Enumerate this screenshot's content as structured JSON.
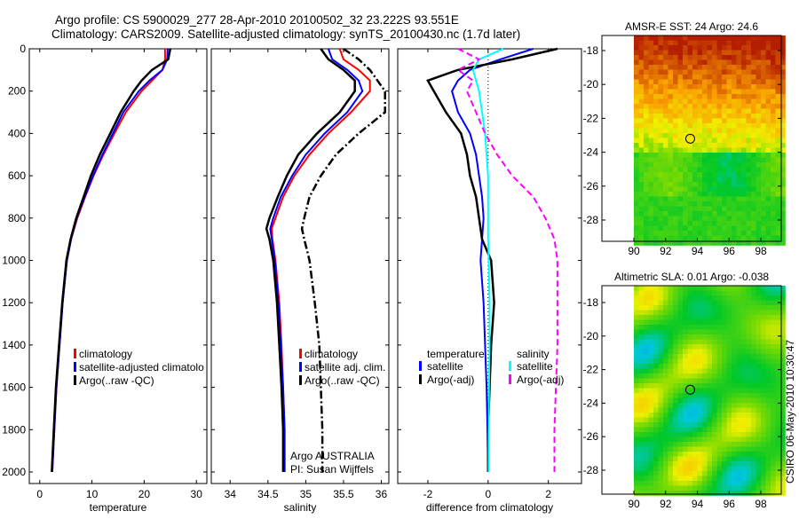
{
  "title": {
    "line1": "Argo profile: CS 5900029_277 28-Apr-2010 20100502_32 23.222S 93.551E",
    "line2": "Climatology: CARS2009. Satellite-adjusted climatology: synTS_20100430.nc (1.7d later)"
  },
  "side_stamp": "CSIRO 06-May-2010 10:30:47",
  "colors": {
    "climatology": "#ff0000",
    "satellite": "#0000ff",
    "argo": "#000000",
    "sal_satellite": "#00ffff",
    "sal_argo": "#ff00ff"
  },
  "chart_data": [
    {
      "type": "line",
      "name": "temperature-panel",
      "xlabel": "temperature",
      "ylabel": "",
      "xlim": [
        -2,
        32
      ],
      "ylim": [
        2000,
        0
      ],
      "xticks": [
        0,
        10,
        20,
        30
      ],
      "yticks": [
        0,
        200,
        400,
        600,
        800,
        1000,
        1200,
        1400,
        1600,
        1800,
        2000
      ],
      "depth": [
        0,
        50,
        100,
        150,
        200,
        300,
        400,
        500,
        600,
        700,
        800,
        900,
        1000,
        1200,
        1400,
        1600,
        1800,
        2000
      ],
      "series": [
        {
          "name": "climatology",
          "color": "#ff0000",
          "style": "solid",
          "values": [
            24,
            24,
            23.5,
            21.5,
            19.5,
            16.5,
            14.3,
            12.2,
            10.3,
            8.7,
            7.2,
            6.0,
            5.2,
            4.4,
            3.8,
            3.2,
            2.8,
            2.4
          ]
        },
        {
          "name": "satellite-adjusted climatology",
          "color": "#0000ff",
          "style": "solid",
          "values": [
            24.5,
            24.4,
            23.5,
            21,
            19,
            16,
            14,
            12,
            10.2,
            8.6,
            7.1,
            6.0,
            5.2,
            4.4,
            3.8,
            3.2,
            2.8,
            2.4
          ]
        },
        {
          "name": "Argo(..raw -QC)",
          "color": "#000000",
          "style": "solid",
          "values": [
            25,
            24.6,
            21.5,
            19.5,
            18,
            15.5,
            13.5,
            11.5,
            9.8,
            8.4,
            7,
            5.9,
            5.1,
            4.3,
            3.7,
            3.1,
            2.7,
            2.3
          ]
        }
      ],
      "legend": [
        "climatology",
        "satellite-adjusted climatolo",
        "Argo(..raw -QC)"
      ]
    },
    {
      "type": "line",
      "name": "salinity-panel",
      "xlabel": "salinity",
      "xlim": [
        33.75,
        36.1
      ],
      "ylim": [
        2000,
        0
      ],
      "xticks": [
        34,
        34.5,
        35,
        35.5,
        36
      ],
      "depth": [
        0,
        50,
        100,
        150,
        200,
        300,
        400,
        500,
        600,
        700,
        800,
        850,
        900,
        1000,
        1200,
        1400,
        1600,
        1800,
        2000
      ],
      "series": [
        {
          "name": "climatology",
          "color": "#ff0000",
          "style": "solid",
          "values": [
            35.45,
            35.5,
            35.7,
            35.85,
            35.85,
            35.6,
            35.3,
            35.05,
            34.85,
            34.7,
            34.6,
            34.55,
            34.56,
            34.6,
            34.65,
            34.68,
            34.7,
            34.72,
            34.72
          ]
        },
        {
          "name": "satellite adj. clim.",
          "color": "#0000ff",
          "style": "solid",
          "values": [
            35.3,
            35.35,
            35.55,
            35.7,
            35.75,
            35.55,
            35.25,
            35.0,
            34.82,
            34.67,
            34.57,
            34.53,
            34.55,
            34.59,
            34.64,
            34.67,
            34.7,
            34.72,
            34.72
          ]
        },
        {
          "name": "Argo(..raw -QC)",
          "color": "#000000",
          "style": "solid",
          "values": [
            35.2,
            35.3,
            35.5,
            35.65,
            35.65,
            35.45,
            35.15,
            34.9,
            34.75,
            34.63,
            34.52,
            34.48,
            34.52,
            34.57,
            34.62,
            34.65,
            34.68,
            34.7,
            34.7
          ]
        },
        {
          "name": "Argo raw",
          "color": "#000000",
          "style": "dashdot",
          "values": [
            35.5,
            35.7,
            35.85,
            35.95,
            36.05,
            36.05,
            35.7,
            35.4,
            35.2,
            35.05,
            34.98,
            34.95,
            34.98,
            35.05,
            35.12,
            35.18,
            35.2,
            35.22,
            35.22
          ]
        }
      ],
      "legend": [
        "climatology",
        "satellite adj. clim.",
        "Argo(..raw -QC)"
      ],
      "annotation": [
        "Argo AUSTRALIA",
        "PI: Susan Wijffels"
      ]
    },
    {
      "type": "line",
      "name": "difference-panel",
      "xlabel": "difference from climatology",
      "xlim": [
        -3,
        3.1
      ],
      "ylim": [
        2000,
        0
      ],
      "xticks": [
        -2,
        0,
        2
      ],
      "depth": [
        0,
        50,
        100,
        150,
        200,
        300,
        400,
        500,
        600,
        700,
        800,
        900,
        1000,
        1200,
        1400,
        1600,
        1800,
        2000
      ],
      "series": [
        {
          "name": "temperature satellite",
          "color": "#0000ff",
          "style": "solid",
          "values": [
            1.5,
            0.4,
            -0.6,
            -1.0,
            -1.2,
            -1.0,
            -0.6,
            -0.4,
            -0.3,
            -0.2,
            -0.15,
            -0.2,
            -0.25,
            -0.15,
            -0.1,
            -0.05,
            -0.02,
            0
          ]
        },
        {
          "name": "temperature Argo(-adj)",
          "color": "#000000",
          "style": "solid",
          "values": [
            2.3,
            0.8,
            -1.0,
            -2.0,
            -1.8,
            -1.4,
            -0.9,
            -0.7,
            -0.6,
            -0.4,
            -0.3,
            -0.2,
            0.1,
            0.2,
            0.1,
            0.05,
            0,
            0
          ]
        },
        {
          "name": "salinity satellite",
          "color": "#00ffff",
          "style": "solid",
          "values": [
            0.5,
            -0.3,
            -0.5,
            -0.4,
            -0.3,
            -0.2,
            -0.1,
            -0.05,
            0,
            0,
            0,
            0,
            0.02,
            0.05,
            0.05,
            0.03,
            0.02,
            0.02
          ]
        },
        {
          "name": "salinity Argo(-adj)",
          "color": "#ff00ff",
          "style": "dashed",
          "values": [
            -1.0,
            -0.3,
            -1.0,
            -0.5,
            -0.7,
            -0.4,
            -0.1,
            0.3,
            0.8,
            1.5,
            1.9,
            2.2,
            2.3,
            2.3,
            2.3,
            2.25,
            2.2,
            2.2
          ]
        }
      ],
      "legend_headers": [
        "temperature",
        "salinity"
      ],
      "legend": [
        "satellite",
        "Argo(-adj)",
        "satellite",
        "Argo(-adj)"
      ]
    },
    {
      "type": "heatmap",
      "name": "sst-map",
      "title": "AMSR-E SST: 24 Argo: 24.6",
      "xlim": [
        88,
        99
      ],
      "ylim": [
        -29.2,
        -17
      ],
      "xticks": [
        90,
        92,
        94,
        96,
        98
      ],
      "yticks": [
        -18,
        -20,
        -22,
        -24,
        -26,
        -28
      ],
      "marker": {
        "lon": 93.55,
        "lat": -23.2
      }
    },
    {
      "type": "heatmap",
      "name": "sla-map",
      "title": "Altimetric SLA: 0.01 Argo: -0.038",
      "xlim": [
        88,
        99
      ],
      "ylim": [
        -29.2,
        -17
      ],
      "xticks": [
        90,
        92,
        94,
        96,
        98
      ],
      "yticks": [
        -18,
        -20,
        -22,
        -24,
        -26,
        -28
      ],
      "marker": {
        "lon": 93.55,
        "lat": -23.2
      }
    }
  ]
}
